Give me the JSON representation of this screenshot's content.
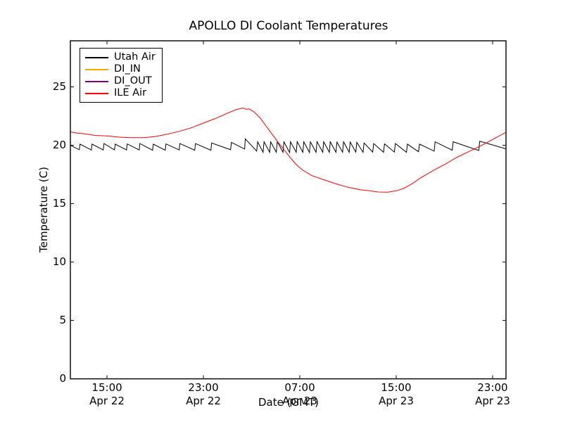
{
  "figure": {
    "title": "APOLLO DI Coolant Temperatures",
    "background_color": "#ffffff",
    "axes_color": "#000000"
  },
  "legend": {
    "position": "upper-left",
    "items": [
      {
        "label": "Utah Air",
        "color": "#000000"
      },
      {
        "label": "DI_IN",
        "color": "#ffa500"
      },
      {
        "label": "DI_OUT",
        "color": "#800080"
      },
      {
        "label": "ILE Air",
        "color": "#ff0000"
      }
    ]
  },
  "chart_data": {
    "type": "line",
    "title": "APOLLO DI Coolant Temperatures",
    "xlabel": "Date (GMT)",
    "ylabel": "Temperature (C)",
    "x_units": "hours since Apr 22 00:00 GMT",
    "xlim": [
      11.96,
      48.11
    ],
    "ylim": [
      0,
      28.95
    ],
    "grid": false,
    "legend_position": "upper left",
    "x_axis": {
      "ticks": [
        {
          "t": 15,
          "label": "15:00\nApr 22"
        },
        {
          "t": 23,
          "label": "23:00\nApr 22"
        },
        {
          "t": 31,
          "label": "07:00\nApr 23"
        },
        {
          "t": 39,
          "label": "15:00\nApr 23"
        },
        {
          "t": 47,
          "label": "23:00\nApr 23"
        }
      ]
    },
    "y_axis": {
      "ticks": [
        0,
        5,
        10,
        15,
        20,
        25
      ]
    },
    "series": [
      {
        "name": "Utah Air",
        "color": "#000000",
        "opacity": 1,
        "width": 1,
        "points": [
          [
            11.96,
            20.0
          ],
          [
            12.7,
            19.62
          ],
          [
            12.76,
            20.1
          ],
          [
            13.7,
            19.6
          ],
          [
            13.76,
            20.1
          ],
          [
            14.69,
            19.6
          ],
          [
            14.75,
            20.15
          ],
          [
            15.62,
            19.6
          ],
          [
            15.68,
            20.1
          ],
          [
            16.62,
            19.6
          ],
          [
            16.68,
            20.12
          ],
          [
            17.67,
            19.6
          ],
          [
            17.73,
            20.15
          ],
          [
            18.78,
            19.58
          ],
          [
            18.84,
            20.1
          ],
          [
            19.83,
            19.58
          ],
          [
            19.89,
            20.12
          ],
          [
            20.99,
            19.6
          ],
          [
            21.05,
            20.15
          ],
          [
            22.28,
            19.58
          ],
          [
            22.34,
            20.15
          ],
          [
            23.62,
            19.58
          ],
          [
            23.68,
            20.2
          ],
          [
            25.26,
            19.62
          ],
          [
            25.32,
            20.25
          ],
          [
            26.42,
            19.68
          ],
          [
            26.48,
            20.55
          ],
          [
            27.42,
            19.5
          ],
          [
            27.5,
            20.3
          ],
          [
            27.95,
            19.4
          ],
          [
            28.03,
            20.3
          ],
          [
            28.5,
            19.4
          ],
          [
            28.58,
            20.3
          ],
          [
            29.05,
            19.4
          ],
          [
            29.13,
            20.32
          ],
          [
            29.6,
            19.4
          ],
          [
            29.68,
            20.3
          ],
          [
            30.15,
            19.38
          ],
          [
            30.23,
            20.3
          ],
          [
            30.7,
            19.4
          ],
          [
            30.78,
            20.32
          ],
          [
            31.25,
            19.4
          ],
          [
            31.33,
            20.3
          ],
          [
            31.8,
            19.38
          ],
          [
            31.88,
            20.3
          ],
          [
            32.35,
            19.4
          ],
          [
            32.43,
            20.32
          ],
          [
            32.9,
            19.4
          ],
          [
            32.98,
            20.3
          ],
          [
            33.45,
            19.4
          ],
          [
            33.53,
            20.3
          ],
          [
            34.0,
            19.4
          ],
          [
            34.08,
            20.28
          ],
          [
            34.55,
            19.4
          ],
          [
            34.63,
            20.3
          ],
          [
            35.1,
            19.4
          ],
          [
            35.18,
            20.28
          ],
          [
            35.65,
            19.42
          ],
          [
            35.73,
            20.25
          ],
          [
            36.25,
            19.4
          ],
          [
            36.33,
            20.2
          ],
          [
            37.05,
            19.42
          ],
          [
            37.13,
            20.15
          ],
          [
            37.95,
            19.4
          ],
          [
            38.03,
            20.12
          ],
          [
            38.85,
            19.42
          ],
          [
            38.93,
            20.15
          ],
          [
            39.85,
            19.4
          ],
          [
            39.93,
            20.1
          ],
          [
            40.85,
            19.45
          ],
          [
            40.93,
            20.1
          ],
          [
            42.15,
            19.5
          ],
          [
            42.23,
            20.3
          ],
          [
            43.65,
            19.58
          ],
          [
            43.73,
            20.3
          ],
          [
            45.85,
            19.55
          ],
          [
            45.93,
            20.35
          ],
          [
            48.11,
            19.7
          ]
        ]
      },
      {
        "name": "DI_IN",
        "color": "#ffa500",
        "opacity": 0.5,
        "width": 1,
        "points": [
          [
            11.96,
            0
          ],
          [
            48.11,
            0
          ]
        ]
      },
      {
        "name": "DI_OUT",
        "color": "#800080",
        "opacity": 0.5,
        "width": 1,
        "points": [
          [
            11.96,
            0
          ],
          [
            48.11,
            0
          ]
        ]
      },
      {
        "name": "ILE Air",
        "color": "#ff0000",
        "opacity": 1,
        "width": 1,
        "points": [
          [
            11.96,
            21.15
          ],
          [
            12.5,
            21.05
          ],
          [
            13,
            21.0
          ],
          [
            14,
            20.85
          ],
          [
            15,
            20.8
          ],
          [
            16,
            20.7
          ],
          [
            17,
            20.65
          ],
          [
            18,
            20.65
          ],
          [
            19,
            20.75
          ],
          [
            20,
            20.95
          ],
          [
            21,
            21.2
          ],
          [
            22,
            21.5
          ],
          [
            23,
            21.9
          ],
          [
            24,
            22.3
          ],
          [
            25,
            22.75
          ],
          [
            25.7,
            23.05
          ],
          [
            26.3,
            23.2
          ],
          [
            26.55,
            23.08
          ],
          [
            26.8,
            23.12
          ],
          [
            27.2,
            22.85
          ],
          [
            27.7,
            22.35
          ],
          [
            28.2,
            21.65
          ],
          [
            28.7,
            20.95
          ],
          [
            29.2,
            20.25
          ],
          [
            29.7,
            19.6
          ],
          [
            30.2,
            18.95
          ],
          [
            30.7,
            18.35
          ],
          [
            31.2,
            17.9
          ],
          [
            32,
            17.4
          ],
          [
            33,
            17.05
          ],
          [
            34,
            16.7
          ],
          [
            35,
            16.4
          ],
          [
            36,
            16.2
          ],
          [
            36.8,
            16.1
          ],
          [
            37.5,
            16.0
          ],
          [
            38.3,
            15.98
          ],
          [
            39,
            16.1
          ],
          [
            39.6,
            16.3
          ],
          [
            40.3,
            16.7
          ],
          [
            41,
            17.2
          ],
          [
            42,
            17.8
          ],
          [
            43,
            18.35
          ],
          [
            44,
            18.95
          ],
          [
            45,
            19.45
          ],
          [
            46,
            19.95
          ],
          [
            47,
            20.5
          ],
          [
            48,
            21.05
          ],
          [
            48.11,
            21.1
          ]
        ]
      }
    ]
  }
}
